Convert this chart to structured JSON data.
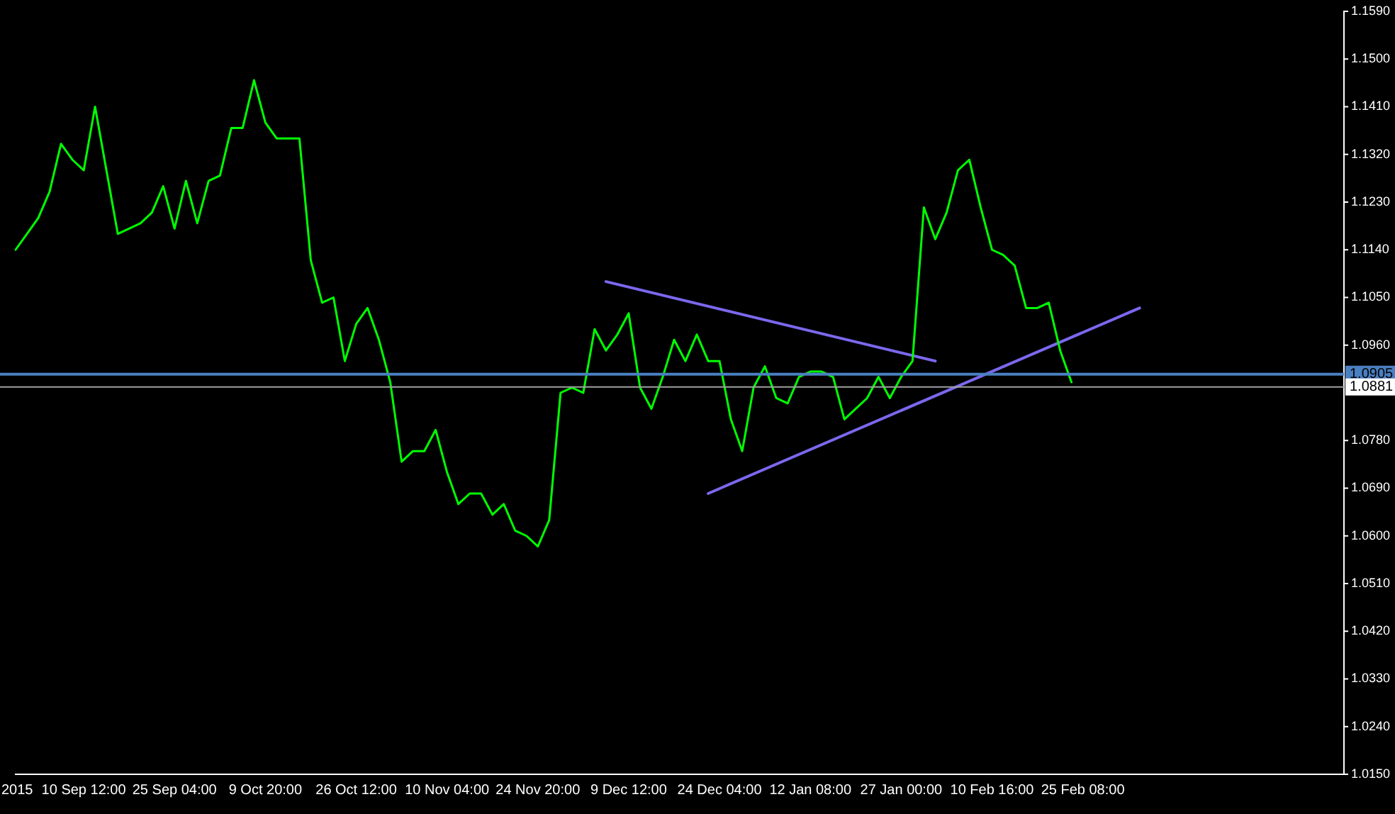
{
  "chart_data": {
    "type": "line",
    "categories": [
      "2015",
      null,
      null,
      null,
      null,
      null,
      "10 Sep 12:00",
      null,
      null,
      null,
      null,
      null,
      null,
      null,
      "25 Sep 04:00",
      null,
      null,
      null,
      null,
      null,
      null,
      null,
      "9 Oct 20:00",
      null,
      null,
      null,
      null,
      null,
      null,
      null,
      "26 Oct 12:00",
      null,
      null,
      null,
      null,
      null,
      null,
      null,
      "10 Nov 04:00",
      null,
      null,
      null,
      null,
      null,
      null,
      null,
      "24 Nov 20:00",
      null,
      null,
      null,
      null,
      null,
      null,
      null,
      "9 Dec 12:00",
      null,
      null,
      null,
      null,
      null,
      null,
      null,
      "24 Dec 04:00",
      null,
      null,
      null,
      null,
      null,
      null,
      null,
      "12 Jan 08:00",
      null,
      null,
      null,
      null,
      null,
      null,
      null,
      "27 Jan 00:00",
      null,
      null,
      null,
      null,
      null,
      null,
      null,
      "10 Feb 16:00",
      null,
      null,
      null,
      null,
      null,
      null,
      null,
      "25 Feb 08:00",
      null,
      null,
      null,
      null,
      null,
      null,
      null,
      null,
      null,
      null,
      null,
      null,
      null,
      null,
      null,
      null,
      null,
      null,
      null,
      null,
      null,
      null,
      null
    ],
    "series": [
      {
        "color": "#00ff00",
        "values": [
          1.114,
          1.117,
          1.12,
          1.125,
          1.134,
          1.131,
          1.129,
          1.141,
          1.129,
          1.117,
          1.118,
          1.119,
          1.121,
          1.126,
          1.118,
          1.127,
          1.119,
          1.127,
          1.128,
          1.137,
          1.137,
          1.146,
          1.138,
          1.135,
          1.135,
          1.135,
          1.112,
          1.104,
          1.105,
          1.093,
          1.1,
          1.103,
          1.097,
          1.089,
          1.074,
          1.076,
          1.076,
          1.08,
          1.072,
          1.066,
          1.068,
          1.068,
          1.064,
          1.066,
          1.061,
          1.06,
          1.058,
          1.063,
          1.087,
          1.088,
          1.087,
          1.099,
          1.095,
          1.098,
          1.102,
          1.088,
          1.084,
          1.09,
          1.097,
          1.093,
          1.098,
          1.093,
          1.093,
          1.082,
          1.076,
          1.088,
          1.092,
          1.086,
          1.085,
          1.09,
          1.091,
          1.091,
          1.09,
          1.082,
          1.084,
          1.086,
          1.09,
          1.086,
          1.09,
          1.093,
          1.122,
          1.116,
          1.121,
          1.129,
          1.131,
          1.122,
          1.114,
          1.113,
          1.111,
          1.103,
          1.103,
          1.104,
          1.095,
          1.089,
          null,
          null,
          null,
          null,
          null,
          null,
          null,
          null,
          null,
          null,
          null,
          null,
          null,
          null,
          null,
          null,
          null,
          null,
          null,
          null,
          null,
          null,
          null,
          null
        ]
      },
      {
        "color": "#7b68ee",
        "values": [
          null,
          null,
          null,
          null,
          null,
          null,
          null,
          null,
          null,
          null,
          null,
          null,
          null,
          null,
          null,
          null,
          null,
          null,
          null,
          null,
          null,
          null,
          null,
          null,
          null,
          null,
          null,
          null,
          null,
          null,
          null,
          null,
          null,
          null,
          null,
          null,
          null,
          null,
          null,
          null,
          null,
          null,
          null,
          null,
          null,
          null,
          null,
          null,
          null,
          null,
          null,
          null,
          1.108,
          null,
          null,
          null,
          null,
          null,
          null,
          null,
          null,
          null,
          null,
          null,
          null,
          null,
          null,
          null,
          null,
          null,
          null,
          null,
          null,
          null,
          null,
          null,
          null,
          null,
          null,
          null,
          null,
          1.093,
          null,
          null,
          null,
          null,
          null,
          null,
          null,
          null,
          null,
          null,
          null,
          null,
          null,
          null,
          null,
          null,
          null,
          null,
          null,
          null,
          null,
          null,
          null,
          null,
          null,
          null,
          null,
          null,
          null,
          null,
          null,
          null,
          null,
          null,
          null,
          null
        ]
      },
      {
        "color": "#7b68ee",
        "values": [
          null,
          null,
          null,
          null,
          null,
          null,
          null,
          null,
          null,
          null,
          null,
          null,
          null,
          null,
          null,
          null,
          null,
          null,
          null,
          null,
          null,
          null,
          null,
          null,
          null,
          null,
          null,
          null,
          null,
          null,
          null,
          null,
          null,
          null,
          null,
          null,
          null,
          null,
          null,
          null,
          null,
          null,
          null,
          null,
          null,
          null,
          null,
          null,
          null,
          null,
          null,
          null,
          null,
          null,
          null,
          null,
          null,
          null,
          null,
          null,
          null,
          1.068,
          null,
          null,
          null,
          null,
          null,
          null,
          null,
          null,
          null,
          null,
          null,
          null,
          null,
          null,
          null,
          null,
          null,
          null,
          null,
          null,
          null,
          null,
          null,
          null,
          null,
          null,
          null,
          null,
          null,
          null,
          null,
          null,
          null,
          null,
          null,
          null,
          null,
          1.103,
          null,
          null,
          null,
          null,
          null,
          null,
          null,
          null,
          null,
          null,
          null,
          null,
          null,
          null,
          null,
          null,
          null,
          null
        ]
      }
    ],
    "ylim": [
      1.015,
      1.159
    ],
    "yticks": [
      {
        "value": 1.015,
        "label": "1.0150"
      },
      {
        "value": 1.024,
        "label": "1.0240"
      },
      {
        "value": 1.033,
        "label": "1.0330"
      },
      {
        "value": 1.042,
        "label": "1.0420"
      },
      {
        "value": 1.051,
        "label": "1.0510"
      },
      {
        "value": 1.06,
        "label": "1.0600"
      },
      {
        "value": 1.069,
        "label": "1.0690"
      },
      {
        "value": 1.078,
        "label": "1.0780"
      },
      {
        "value": 1.096,
        "label": "1.0960"
      },
      {
        "value": 1.105,
        "label": "1.1050"
      },
      {
        "value": 1.114,
        "label": "1.1140"
      },
      {
        "value": 1.123,
        "label": "1.1230"
      },
      {
        "value": 1.132,
        "label": "1.1320"
      },
      {
        "value": 1.141,
        "label": "1.1410"
      },
      {
        "value": 1.15,
        "label": "1.1500"
      },
      {
        "value": 1.159,
        "label": "1.1590"
      }
    ],
    "ref_lines": [
      {
        "axis": "y",
        "value": 1.0905,
        "label": "1.0905",
        "color": "#4a7fc1"
      },
      {
        "axis": "y",
        "value": 1.0881,
        "label": "1.0881",
        "color": "#a0a0a0"
      }
    ],
    "grid": false,
    "legend": false,
    "marker": "none",
    "line_style": "solid"
  }
}
